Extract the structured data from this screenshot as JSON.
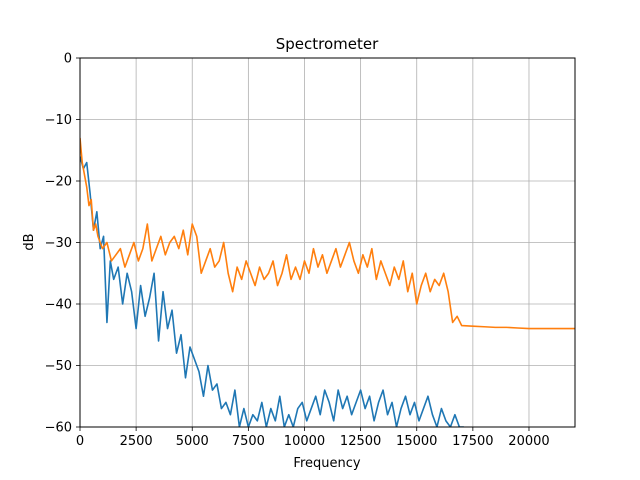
{
  "chart_data": {
    "type": "line",
    "title": "Spectrometer",
    "xlabel": "Frequency",
    "ylabel": "dB",
    "xlim": [
      0,
      22050
    ],
    "ylim": [
      -60,
      0
    ],
    "grid": true,
    "x_ticks": [
      0,
      2500,
      5000,
      7500,
      10000,
      12500,
      15000,
      17500,
      20000
    ],
    "x_tick_labels": [
      "0",
      "2500",
      "5000",
      "7500",
      "10000",
      "12500",
      "15000",
      "17500",
      "20000"
    ],
    "y_ticks": [
      0,
      -10,
      -20,
      -30,
      -40,
      -50,
      -60
    ],
    "y_tick_labels": [
      "0",
      "−10",
      "−20",
      "−30",
      "−40",
      "−50",
      "−60"
    ],
    "series": [
      {
        "color": "#1f77b4",
        "x": [
          0,
          150,
          300,
          450,
          600,
          750,
          900,
          1050,
          1200,
          1350,
          1500,
          1700,
          1900,
          2100,
          2300,
          2500,
          2700,
          2900,
          3100,
          3300,
          3500,
          3700,
          3900,
          4100,
          4300,
          4500,
          4700,
          4900,
          5100,
          5300,
          5500,
          5700,
          5900,
          6100,
          6300,
          6500,
          6700,
          6900,
          7100,
          7300,
          7500,
          7700,
          7900,
          8100,
          8300,
          8500,
          8700,
          8900,
          9100,
          9300,
          9500,
          9700,
          9900,
          10100,
          10300,
          10500,
          10700,
          10900,
          11100,
          11300,
          11500,
          11700,
          11900,
          12100,
          12300,
          12500,
          12700,
          12900,
          13100,
          13300,
          13500,
          13700,
          13900,
          14100,
          14300,
          14500,
          14700,
          14900,
          15100,
          15300,
          15500,
          15700,
          15900,
          16100,
          16300,
          16500,
          16700,
          16900,
          17100
        ],
        "y": [
          -16,
          -18,
          -17,
          -22,
          -28,
          -25,
          -31,
          -29,
          -43,
          -33,
          -36,
          -34,
          -40,
          -35,
          -38,
          -44,
          -37,
          -42,
          -39,
          -35,
          -46,
          -38,
          -44,
          -41,
          -48,
          -45,
          -52,
          -47,
          -49,
          -51,
          -55,
          -50,
          -54,
          -53,
          -57,
          -56,
          -58,
          -54,
          -60,
          -57,
          -60,
          -58,
          -59,
          -56,
          -60,
          -57,
          -59,
          -55,
          -60,
          -58,
          -60,
          -57,
          -56,
          -59,
          -57,
          -55,
          -58,
          -54,
          -56,
          -59,
          -54,
          -57,
          -55,
          -58,
          -56,
          -54,
          -57,
          -55,
          -59,
          -56,
          -54,
          -58,
          -56,
          -60,
          -57,
          -55,
          -58,
          -56,
          -59,
          -57,
          -55,
          -58,
          -60,
          -57,
          -59,
          -60,
          -58,
          -60,
          -60
        ]
      },
      {
        "color": "#ff7f0e",
        "x": [
          0,
          100,
          200,
          300,
          400,
          500,
          600,
          700,
          800,
          900,
          1000,
          1200,
          1400,
          1600,
          1800,
          2000,
          2200,
          2400,
          2600,
          2800,
          3000,
          3200,
          3400,
          3600,
          3800,
          4000,
          4200,
          4400,
          4600,
          4800,
          5000,
          5200,
          5400,
          5600,
          5800,
          6000,
          6200,
          6400,
          6600,
          6800,
          7000,
          7200,
          7400,
          7600,
          7800,
          8000,
          8200,
          8400,
          8600,
          8800,
          9000,
          9200,
          9400,
          9600,
          9800,
          10000,
          10200,
          10400,
          10600,
          10800,
          11000,
          11200,
          11400,
          11600,
          11800,
          12000,
          12200,
          12400,
          12600,
          12800,
          13000,
          13200,
          13400,
          13600,
          13800,
          14000,
          14200,
          14400,
          14600,
          14800,
          15000,
          15200,
          15400,
          15600,
          15800,
          16000,
          16200,
          16400,
          16600,
          16800,
          17000,
          17500,
          18000,
          18500,
          19000,
          19500,
          20000,
          20500,
          21000,
          21500,
          22050
        ],
        "y": [
          -13,
          -17,
          -19,
          -21,
          -24,
          -23,
          -28,
          -27,
          -29,
          -30,
          -31,
          -30,
          -33,
          -32,
          -31,
          -34,
          -32,
          -30,
          -33,
          -31,
          -27,
          -33,
          -31,
          -29,
          -32,
          -30,
          -29,
          -31,
          -28,
          -32,
          -27,
          -29,
          -35,
          -33,
          -31,
          -34,
          -33,
          -30,
          -35,
          -38,
          -34,
          -36,
          -33,
          -35,
          -37,
          -34,
          -36,
          -35,
          -33,
          -37,
          -35,
          -32,
          -36,
          -34,
          -36,
          -33,
          -35,
          -31,
          -34,
          -32,
          -35,
          -33,
          -31,
          -34,
          -32,
          -30,
          -33,
          -35,
          -32,
          -34,
          -31,
          -36,
          -33,
          -35,
          -37,
          -34,
          -36,
          -33,
          -38,
          -35,
          -40,
          -37,
          -35,
          -38,
          -36,
          -37,
          -35,
          -38,
          -43,
          -42,
          -43.5,
          -43.6,
          -43.7,
          -43.8,
          -43.8,
          -43.9,
          -44,
          -44,
          -44,
          -44,
          -44
        ]
      }
    ]
  }
}
